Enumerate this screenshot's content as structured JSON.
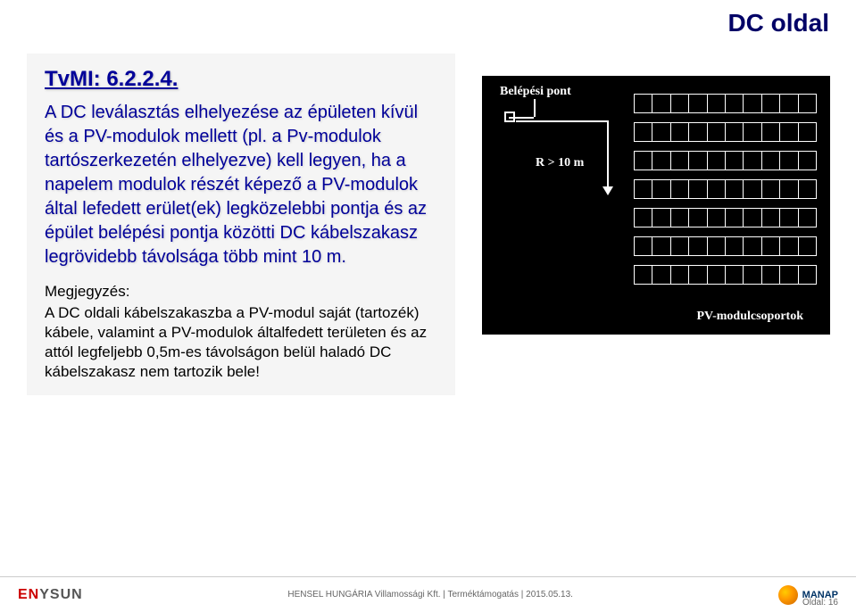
{
  "header": {
    "section_title": "DC oldal"
  },
  "content": {
    "tvmi_ref": "TvMI: 6.2.2.4.",
    "paragraph": "A DC leválasztás elhelyezése az épületen kívül és a PV-modulok mellett (pl. a Pv-modulok tartószerkezetén elhelyezve) kell legyen, ha a napelem modulok részét képező a PV-modulok által lefedett erület(ek) legközelebbi pontja és az épület belépési pontja közötti DC kábelszakasz legrövidebb távolsága több mint 10 m."
  },
  "note": {
    "label": "Megjegyzés:",
    "text": "A DC oldali kábelszakaszba a PV-modul saját (tartozék) kábele, valamint a PV-modulok általfedett területen és az attól legfeljebb 0,5m-es távolságon belül haladó DC kábelszakasz nem tartozik bele!"
  },
  "diagram": {
    "entry_label": "Belépési pont",
    "distance_label": "R > 10 m",
    "module_group_label": "PV-modulcsoportok",
    "background_color": "#000000",
    "stroke_color": "#ffffff",
    "rows": 7,
    "cells_per_row": 10
  },
  "footer": {
    "logo_left": "ENYSUN",
    "center_text": "HENSEL HUNGÁRIA Villamossági Kft. | Terméktámogatás | 2015.05.13.",
    "logo_right": "MANAP",
    "page_label": "Oldal: 16"
  },
  "colors": {
    "heading_blue": "#000066",
    "body_blue": "#000099",
    "content_bg": "#f5f5f5"
  }
}
